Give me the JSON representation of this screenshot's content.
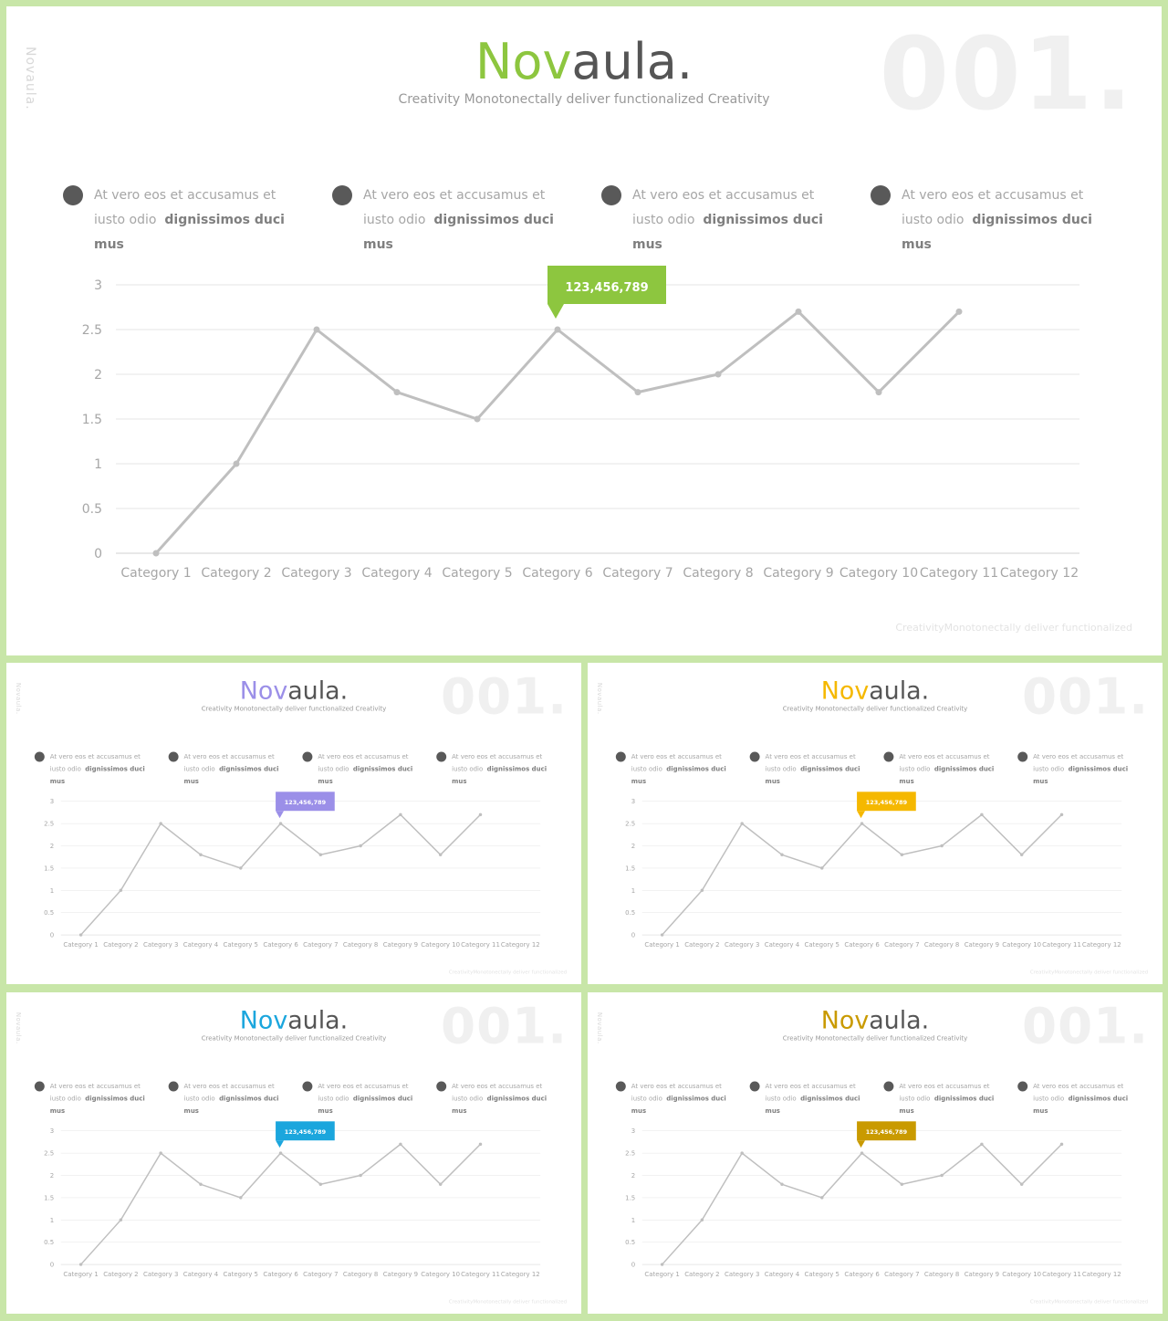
{
  "brand": {
    "part1": "Nov",
    "part2": "aula."
  },
  "side_label": "Novaula.",
  "slide_number": "001.",
  "subtitle": "Creativity Monotonectally  deliver functionalized Creativity",
  "footer": "CreativityMonotonectally deliver functionalized",
  "bullets": [
    {
      "line1": "At vero eos et accusamus et",
      "line2_plain": "iusto odio",
      "line2_bold": "dignissimos duci mus"
    },
    {
      "line1": "At vero eos et accusamus et",
      "line2_plain": "iusto odio",
      "line2_bold": "dignissimos duci mus"
    },
    {
      "line1": "At vero eos et accusamus et",
      "line2_plain": "iusto odio",
      "line2_bold": "dignissimos duci mus"
    },
    {
      "line1": "At vero eos et accusamus et",
      "line2_plain": "iusto odio",
      "line2_bold": "dignissimos duci mus"
    }
  ],
  "callout": {
    "text": "123,456,789",
    "category_index": 5
  },
  "variants": [
    {
      "accent": "#8dc63f"
    },
    {
      "accent": "#9b8fe8"
    },
    {
      "accent": "#f5b800"
    },
    {
      "accent": "#1ba6dd"
    },
    {
      "accent": "#c99a00"
    }
  ],
  "colors": {
    "line": "#bfbfbf",
    "grid": "#e6e6e6",
    "tick": "#a6a6a6"
  },
  "chart_data": {
    "type": "line",
    "categories": [
      "Category 1",
      "Category 2",
      "Category 3",
      "Category 4",
      "Category 5",
      "Category 6",
      "Category 7",
      "Category 8",
      "Category 9",
      "Category 10",
      "Category 11",
      "Category 12"
    ],
    "values": [
      0,
      1,
      2.5,
      1.8,
      1.5,
      2.5,
      1.8,
      2,
      2.7,
      1.8,
      2.7,
      null
    ],
    "ylim": [
      0,
      3
    ],
    "yticks": [
      "0",
      "0.5",
      "1",
      "1.5",
      "2",
      "2.5",
      "3"
    ],
    "grid": true,
    "legend": false
  }
}
